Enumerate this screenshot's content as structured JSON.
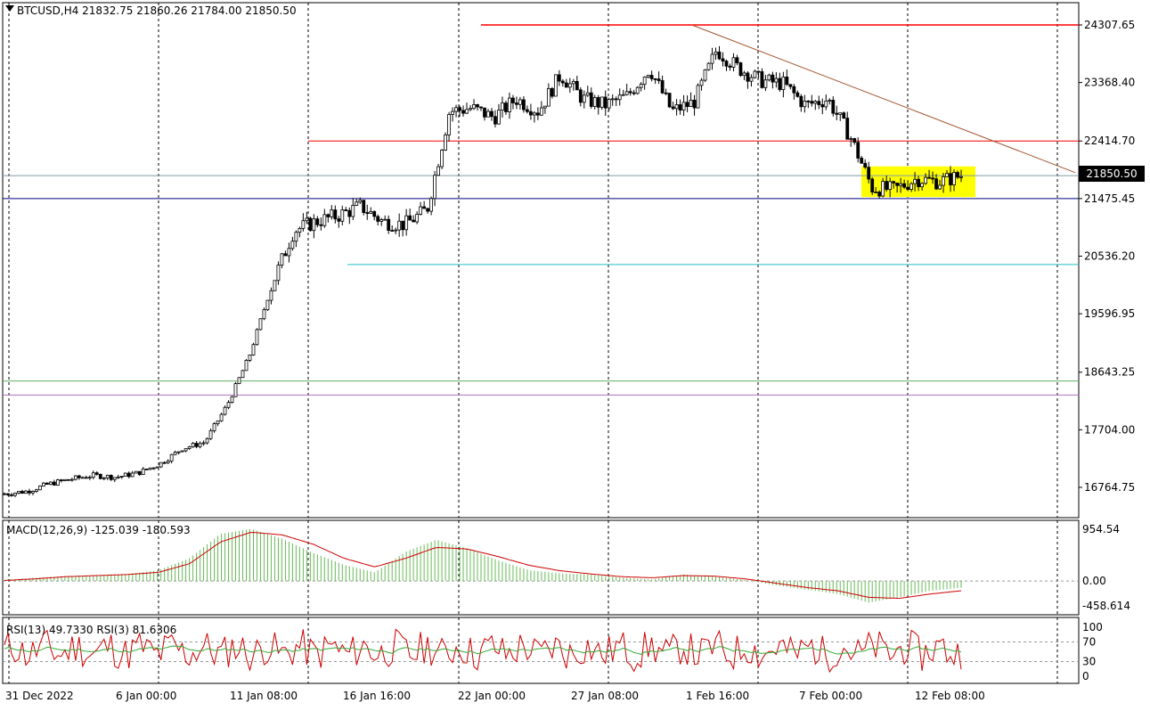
{
  "header": {
    "symbol_line": "BTCUSD,H4  21832.75 21860.26 21784.00 21850.50"
  },
  "current_price_label": "21850.50",
  "price_axis_labels": [
    "24307.65",
    "23368.40",
    "22414.70",
    "21475.45",
    "20536.20",
    "19596.95",
    "18643.25",
    "17704.00",
    "16764.75"
  ],
  "time_axis_labels": [
    "31 Dec 2022",
    "6 Jan 00:00",
    "11 Jan 08:00",
    "16 Jan 16:00",
    "22 Jan 00:00",
    "27 Jan 08:00",
    "1 Feb 16:00",
    "7 Feb 00:00",
    "12 Feb 08:00"
  ],
  "macd": {
    "label": "MACD(12,26,9) -125.039 -180.593",
    "axis_labels": [
      "954.54",
      "0.00",
      "-458.614"
    ]
  },
  "rsi": {
    "label": "RSI(13) 49.7330  RSI(3) 81.6306",
    "axis_labels": [
      "100",
      "70",
      "30",
      "0"
    ]
  },
  "colors": {
    "bull": "#000000",
    "bear": "#000000",
    "resistance": "#ff0000",
    "support": "#000080",
    "trendline": "#a0522d",
    "highlight": "#ffff00",
    "macd_hist": "#66bb55",
    "signal": "#cc0000",
    "rsi13": "#33aa33",
    "rsi3": "#cc0000"
  },
  "chart_data": [
    {
      "type": "candlestick",
      "symbol": "BTCUSD",
      "timeframe": "H4",
      "ohlc_last": {
        "open": 21832.75,
        "high": 21860.26,
        "low": 21784.0,
        "close": 21850.5
      },
      "x_range": [
        "2022-12-31",
        "2023-02-14"
      ],
      "ylim": [
        16400,
        24600
      ],
      "trend_closes": [
        16660,
        16700,
        16820,
        16900,
        16960,
        16930,
        17000,
        17150,
        17400,
        17500,
        18100,
        18900,
        20050,
        20950,
        21100,
        21200,
        21350,
        21100,
        21050,
        21300,
        22900,
        22950,
        22800,
        23100,
        22900,
        23500,
        23100,
        23000,
        23150,
        23600,
        22900,
        23050,
        23900,
        23600,
        23400,
        23350,
        23000,
        23100,
        22500,
        21650,
        21620,
        21800,
        21750,
        21850
      ],
      "horizontal_levels": [
        {
          "price": 24307.65,
          "color": "red"
        },
        {
          "price": 22414.7,
          "color": "red"
        },
        {
          "price": 21850.5,
          "color": "gray",
          "note": "current price"
        },
        {
          "price": 21475.45,
          "color": "navy"
        },
        {
          "price": 20400,
          "color": "cyan"
        },
        {
          "price": 18500,
          "color": "green"
        },
        {
          "price": 18270,
          "color": "purple"
        }
      ],
      "trendline": {
        "from": [
          "2023-02-01",
          24300
        ],
        "to": [
          "2023-02-14",
          21950
        ]
      },
      "highlight_zone": {
        "x": [
          "2023-02-07",
          "2023-02-13"
        ],
        "y": [
          21500,
          22000
        ]
      }
    },
    {
      "type": "bar",
      "name": "MACD(12,26,9)",
      "values_text": "-125.039 -180.593",
      "ylim": [
        -458.614,
        954.54
      ],
      "histogram_trend": [
        20,
        60,
        90,
        110,
        130,
        200,
        420,
        870,
        960,
        780,
        520,
        300,
        160,
        540,
        760,
        600,
        380,
        200,
        140,
        120,
        60,
        30,
        120,
        80,
        20,
        -80,
        -160,
        -240,
        -400,
        -300,
        -180,
        -125
      ],
      "signal_trend": [
        10,
        40,
        80,
        100,
        120,
        160,
        320,
        720,
        900,
        850,
        680,
        420,
        260,
        420,
        620,
        590,
        450,
        290,
        190,
        130,
        80,
        60,
        100,
        90,
        40,
        -40,
        -120,
        -180,
        -300,
        -320,
        -240,
        -180
      ]
    },
    {
      "type": "line",
      "name": "RSI",
      "series_names": [
        "RSI(13)",
        "RSI(3)"
      ],
      "last_values": [
        49.733,
        81.6306
      ],
      "ylim": [
        0,
        100
      ],
      "levels": [
        70,
        30
      ]
    }
  ]
}
